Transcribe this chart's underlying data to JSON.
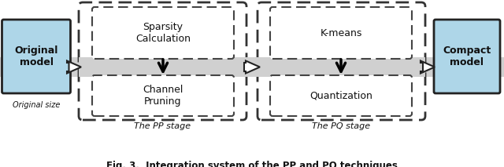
{
  "bg_color": "#ffffff",
  "fig_width": 6.4,
  "fig_height": 2.13,
  "box_blue_color": "#aed6e8",
  "box_blue_edge": "#222222",
  "box_outer_dashed_edge": "#333333",
  "box_inner_dashed_edge": "#444444",
  "gray_band_color": "#d0d0d0",
  "arrow_color": "#222222",
  "text_color": "#111111",
  "label_original": "Original\nmodel",
  "label_compact": "Compact\nmodel",
  "label_original_size": "Original size",
  "label_sparsity": "Sparsity\nCalculation",
  "label_channel": "Channel\nPruning",
  "label_kmeans": "K-means",
  "label_quantization": "Quantization",
  "label_pp": "The PP stage",
  "label_pq": "The PQ stage",
  "caption": "Fig. 3.  Integration system of the PP and PQ techniques"
}
